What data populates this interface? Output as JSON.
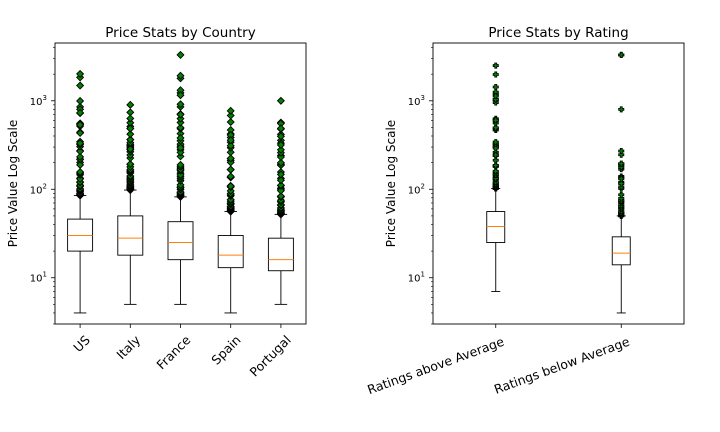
{
  "chart_data": [
    {
      "type": "box",
      "title": "Price Stats by Country",
      "xlabel": "",
      "ylabel": "Price Value Log Scale",
      "yscale": "log",
      "ylim": [
        3,
        4500
      ],
      "yticks": [
        {
          "value": 10,
          "base": "10",
          "exp": "1"
        },
        {
          "value": 100,
          "base": "10",
          "exp": "2"
        },
        {
          "value": 1000,
          "base": "10",
          "exp": "3"
        }
      ],
      "grid": false,
      "box_color": "#000000",
      "median_color": "#ff7f0e",
      "flier_color": "#008000",
      "flier_marker": "diamond",
      "categories": [
        "US",
        "Italy",
        "France",
        "Spain",
        "Portugal"
      ],
      "boxes": [
        {
          "label": "US",
          "whisker_low": 4,
          "q1": 20,
          "median": 30,
          "q3": 46,
          "whisker_high": 85,
          "flier_min": 85,
          "flier_max": 2013
        },
        {
          "label": "Italy",
          "whisker_low": 5,
          "q1": 18,
          "median": 28,
          "q3": 50,
          "whisker_high": 98,
          "flier_min": 98,
          "flier_max": 900
        },
        {
          "label": "France",
          "whisker_low": 5,
          "q1": 16,
          "median": 25,
          "q3": 43,
          "whisker_high": 82,
          "flier_min": 82,
          "flier_max": 3300
        },
        {
          "label": "Spain",
          "whisker_low": 4,
          "q1": 13,
          "median": 18,
          "q3": 30,
          "whisker_high": 56,
          "flier_min": 56,
          "flier_max": 770
        },
        {
          "label": "Portugal",
          "whisker_low": 5,
          "q1": 12,
          "median": 16,
          "q3": 28,
          "whisker_high": 52,
          "flier_min": 52,
          "flier_max": 1000
        }
      ]
    },
    {
      "type": "box",
      "title": "Price Stats by Rating",
      "xlabel": "",
      "ylabel": "Price Value Log Scale",
      "yscale": "log",
      "ylim": [
        3,
        4500
      ],
      "yticks": [
        {
          "value": 10,
          "base": "10",
          "exp": "1"
        },
        {
          "value": 100,
          "base": "10",
          "exp": "2"
        },
        {
          "value": 1000,
          "base": "10",
          "exp": "3"
        }
      ],
      "grid": false,
      "box_color": "#000000",
      "median_color": "#ff7f0e",
      "flier_color": "#008000",
      "flier_marker": "plus",
      "categories": [
        "Ratings above Average",
        "Ratings below Average"
      ],
      "boxes": [
        {
          "label": "Ratings above Average",
          "whisker_low": 7,
          "q1": 25,
          "median": 38,
          "q3": 56,
          "whisker_high": 102,
          "flier_min": 102,
          "flier_max": 2500
        },
        {
          "label": "Ratings below Average",
          "whisker_low": 4,
          "q1": 14,
          "median": 19,
          "q3": 29,
          "whisker_high": 50,
          "flier_min": 50,
          "flier_max": 3300,
          "isolated_fliers": [
            800,
            3300
          ]
        }
      ]
    }
  ]
}
